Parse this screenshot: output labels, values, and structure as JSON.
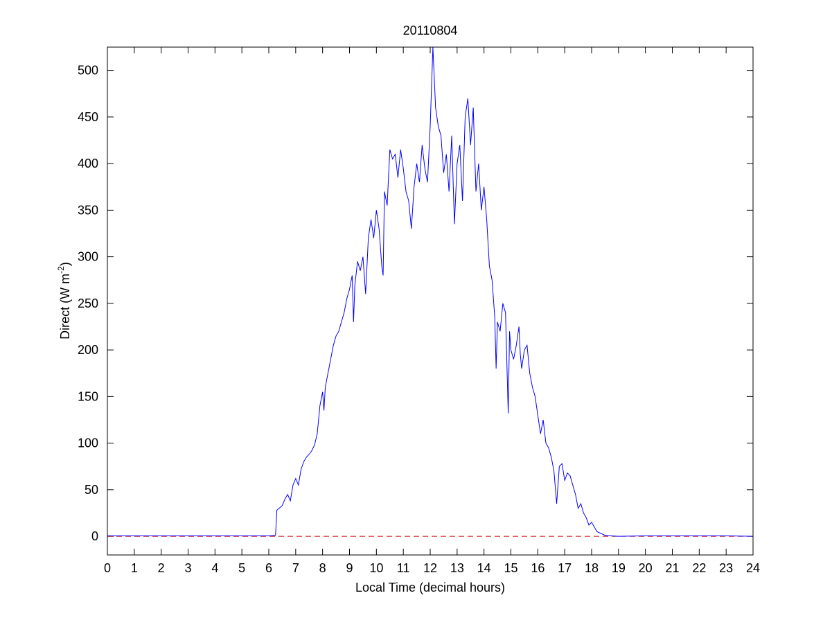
{
  "chart_data": {
    "type": "line",
    "title": "20110804",
    "xlabel": "Local Time (decimal hours)",
    "ylabel": [
      "Direct (W m",
      "-2",
      ")"
    ],
    "xlim": [
      0,
      24
    ],
    "ylim": [
      -20,
      525
    ],
    "xticks": [
      0,
      1,
      2,
      3,
      4,
      5,
      6,
      7,
      8,
      9,
      10,
      11,
      12,
      13,
      14,
      15,
      16,
      17,
      18,
      19,
      20,
      21,
      22,
      23,
      24
    ],
    "yticks": [
      0,
      50,
      100,
      150,
      200,
      250,
      300,
      350,
      400,
      450,
      500
    ],
    "grid": false,
    "series": [
      {
        "color": "#0000ff",
        "style": "solid",
        "x": [
          0,
          1,
          2,
          3,
          4,
          5,
          6,
          6.25,
          6.3,
          6.5,
          6.6,
          6.7,
          6.8,
          6.9,
          7.0,
          7.1,
          7.2,
          7.3,
          7.4,
          7.5,
          7.6,
          7.7,
          7.8,
          7.9,
          8.0,
          8.05,
          8.1,
          8.2,
          8.3,
          8.4,
          8.5,
          8.6,
          8.7,
          8.8,
          8.9,
          9.0,
          9.1,
          9.15,
          9.2,
          9.3,
          9.4,
          9.5,
          9.6,
          9.7,
          9.8,
          9.9,
          10.0,
          10.1,
          10.2,
          10.25,
          10.3,
          10.4,
          10.5,
          10.6,
          10.7,
          10.8,
          10.9,
          11.0,
          11.1,
          11.2,
          11.3,
          11.4,
          11.5,
          11.6,
          11.7,
          11.8,
          11.9,
          12.0,
          12.1,
          12.2,
          12.3,
          12.4,
          12.5,
          12.6,
          12.7,
          12.8,
          12.9,
          13.0,
          13.1,
          13.2,
          13.3,
          13.4,
          13.5,
          13.6,
          13.7,
          13.8,
          13.9,
          14.0,
          14.1,
          14.2,
          14.3,
          14.4,
          14.45,
          14.5,
          14.6,
          14.7,
          14.8,
          14.9,
          14.95,
          15.0,
          15.1,
          15.2,
          15.3,
          15.35,
          15.4,
          15.5,
          15.6,
          15.7,
          15.8,
          15.9,
          16.0,
          16.1,
          16.2,
          16.3,
          16.4,
          16.5,
          16.6,
          16.7,
          16.8,
          16.9,
          17.0,
          17.1,
          17.2,
          17.3,
          17.4,
          17.5,
          17.6,
          17.7,
          17.8,
          17.9,
          18.0,
          18.2,
          18.5,
          19,
          20,
          21,
          22,
          23,
          24
        ],
        "values": [
          0.5,
          0.5,
          0.5,
          0.5,
          0.5,
          0.5,
          0.5,
          1,
          28,
          33,
          40,
          45,
          38,
          55,
          62,
          55,
          72,
          80,
          85,
          88,
          92,
          98,
          110,
          140,
          155,
          135,
          160,
          175,
          190,
          205,
          215,
          220,
          230,
          240,
          255,
          265,
          280,
          230,
          270,
          295,
          285,
          300,
          260,
          320,
          340,
          320,
          350,
          330,
          290,
          280,
          370,
          355,
          415,
          405,
          410,
          385,
          415,
          395,
          370,
          360,
          330,
          375,
          400,
          380,
          420,
          395,
          380,
          440,
          525,
          460,
          440,
          430,
          390,
          410,
          370,
          430,
          335,
          400,
          420,
          360,
          450,
          470,
          420,
          460,
          370,
          400,
          350,
          375,
          340,
          290,
          275,
          235,
          180,
          230,
          220,
          250,
          240,
          132,
          220,
          200,
          190,
          205,
          225,
          195,
          180,
          200,
          205,
          175,
          160,
          150,
          130,
          110,
          125,
          100,
          95,
          85,
          70,
          35,
          75,
          78,
          60,
          68,
          65,
          55,
          45,
          30,
          35,
          25,
          20,
          12,
          15,
          5,
          1,
          0,
          0.5,
          0.5,
          0.5,
          0.5,
          0
        ]
      },
      {
        "color": "#cc0000",
        "style": "dashed",
        "x": [
          0,
          24
        ],
        "values": [
          0,
          0
        ]
      }
    ]
  }
}
